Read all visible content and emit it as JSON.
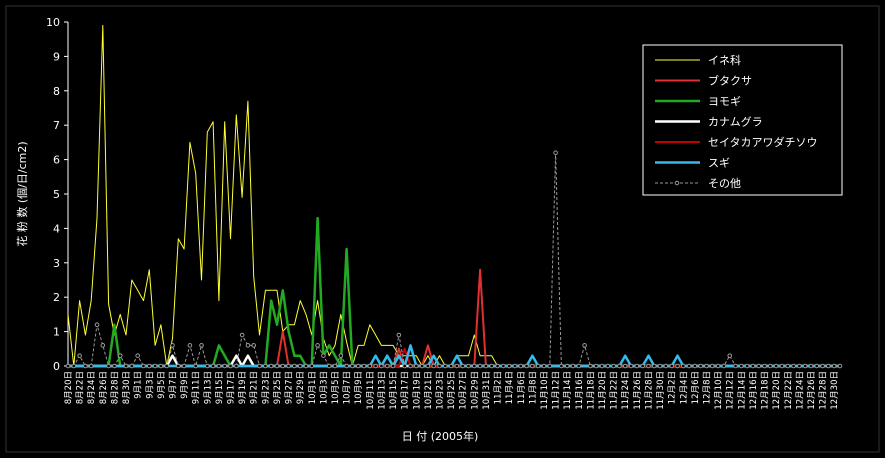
{
  "chart_data": {
    "type": "line",
    "ylabel": "花 粉 数 (個/日/cm2)",
    "xlabel": "日 付 (2005年)",
    "ylim": [
      0,
      10
    ],
    "yticks": [
      0,
      1,
      2,
      3,
      4,
      5,
      6,
      7,
      8,
      9,
      10
    ],
    "legend": "upper right",
    "categories": [
      "8月20日",
      null,
      "8月22日",
      null,
      "8月24日",
      null,
      "8月26日",
      null,
      "8月28日",
      null,
      "8月30日",
      null,
      "9月1日",
      null,
      "9月3日",
      null,
      "9月5日",
      null,
      "9月7日",
      null,
      "9月9日",
      null,
      "9月11日",
      null,
      "9月13日",
      null,
      "9月15日",
      null,
      "9月17日",
      null,
      "9月19日",
      null,
      "9月21日",
      null,
      "9月23日",
      null,
      "9月25日",
      null,
      "9月27日",
      null,
      "9月29日",
      null,
      "10月1日",
      null,
      "10月3日",
      null,
      "10月5日",
      null,
      "10月7日",
      null,
      "10月9日",
      null,
      "10月11日",
      null,
      "10月13日",
      null,
      "10月15日",
      null,
      "10月17日",
      null,
      "10月19日",
      null,
      "10月21日",
      null,
      "10月23日",
      null,
      "10月25日",
      null,
      "10月27日",
      null,
      "10月29日",
      null,
      "10月31日",
      null,
      "11月2日",
      null,
      "11月4日",
      null,
      "11月6日",
      null,
      "11月8日",
      null,
      "11月10日",
      null,
      "11月12日",
      null,
      "11月14日",
      null,
      "11月16日",
      null,
      "11月18日",
      null,
      "11月20日",
      null,
      "11月22日",
      null,
      "11月24日",
      null,
      "11月26日",
      null,
      "11月28日",
      null,
      "11月30日",
      null,
      "12月2日",
      null,
      "12月4日",
      null,
      "12月6日",
      null,
      "12月8日",
      null,
      "12月10日",
      null,
      "12月12日",
      null,
      "12月14日",
      null,
      "12月16日",
      null,
      "12月18日",
      null,
      "12月20日",
      null,
      "12月22日",
      null,
      "12月24日",
      null,
      "12月26日",
      null,
      "12月28日",
      null,
      "12月30日",
      null
    ],
    "series": [
      {
        "name": "イネ科",
        "color": "#ffff33",
        "width": 1,
        "values": [
          1.5,
          0,
          1.9,
          0.9,
          1.9,
          4.3,
          9.9,
          1.8,
          0.9,
          1.5,
          0.9,
          2.5,
          2.2,
          1.9,
          2.8,
          0.6,
          1.2,
          0,
          0.8,
          3.7,
          3.4,
          6.5,
          5.6,
          2.5,
          6.8,
          7.1,
          1.9,
          7.1,
          3.7,
          7.3,
          4.9,
          7.7,
          2.6,
          0.9,
          2.2,
          2.2,
          2.2,
          1.0,
          1.2,
          1.2,
          1.9,
          1.5,
          0.9,
          1.9,
          0.8,
          0.3,
          0.6,
          1.5,
          0.7,
          0,
          0.6,
          0.6,
          1.2,
          0.9,
          0.6,
          0.6,
          0.6,
          0.3,
          0.3,
          0.3,
          0.3,
          0,
          0.3,
          0,
          0.3,
          0,
          0,
          0.3,
          0.3,
          0.3,
          0.9,
          0.3,
          0.3,
          0.3,
          0,
          0,
          0,
          0,
          0,
          0,
          0,
          0,
          0,
          0,
          0,
          0,
          0,
          0,
          0,
          0,
          0,
          0,
          0,
          0,
          0,
          0,
          0,
          0,
          0,
          0,
          0,
          0,
          0,
          0,
          0,
          0,
          0,
          0,
          0,
          0,
          0,
          0,
          0,
          0,
          0,
          0,
          0,
          0,
          0,
          0,
          0,
          0,
          0,
          0,
          0,
          0,
          0,
          0,
          0,
          0,
          0,
          0,
          0,
          0
        ]
      },
      {
        "name": "ブタクサ",
        "color": "#e03030",
        "width": 2,
        "values": [
          0,
          0,
          0,
          0,
          0,
          0,
          0,
          0,
          0,
          0,
          0,
          0,
          0,
          0,
          0,
          0,
          0,
          0,
          0,
          0,
          0,
          0,
          0,
          0,
          0,
          0,
          0,
          0,
          0,
          0,
          0,
          0,
          0,
          0,
          0,
          0,
          0,
          1.0,
          0,
          0,
          0,
          0,
          0,
          0,
          0,
          0,
          0,
          0,
          0,
          0,
          0,
          0,
          0,
          0,
          0,
          0,
          0,
          0.5,
          0,
          0,
          0,
          0,
          0.6,
          0,
          0,
          0,
          0,
          0,
          0,
          0,
          0,
          2.8,
          0,
          0,
          0,
          0,
          0,
          0,
          0,
          0,
          0,
          0,
          0,
          0,
          0,
          0,
          0,
          0,
          0,
          0,
          0,
          0,
          0,
          0,
          0,
          0,
          0,
          0,
          0,
          0,
          0,
          0,
          0,
          0,
          0,
          0,
          0,
          0,
          0,
          0,
          0,
          0,
          0,
          0,
          0,
          0,
          0,
          0,
          0,
          0,
          0,
          0,
          0,
          0,
          0,
          0,
          0,
          0,
          0,
          0,
          0,
          0,
          0,
          0
        ]
      },
      {
        "name": "ヨモギ",
        "color": "#22aa22",
        "width": 2.5,
        "values": [
          0,
          0,
          0,
          0,
          0,
          0,
          0,
          0,
          1.2,
          0,
          0,
          0,
          0,
          0,
          0,
          0,
          0,
          0,
          0,
          0,
          0,
          0,
          0,
          0,
          0,
          0,
          0.6,
          0.3,
          0,
          0,
          0,
          0,
          0,
          0,
          0,
          1.9,
          1.2,
          2.2,
          1.0,
          0.3,
          0.3,
          0,
          0,
          4.3,
          0.3,
          0.6,
          0.3,
          0,
          3.4,
          0,
          0,
          0,
          0,
          0,
          0,
          0.3,
          0,
          0.3,
          0,
          0,
          0,
          0,
          0,
          0,
          0,
          0,
          0,
          0,
          0,
          0,
          0,
          0,
          0,
          0,
          0,
          0,
          0,
          0,
          0,
          0,
          0,
          0,
          0,
          0,
          0,
          0,
          0,
          0,
          0,
          0,
          0,
          0,
          0,
          0,
          0,
          0,
          0,
          0,
          0,
          0,
          0,
          0,
          0,
          0,
          0,
          0,
          0,
          0,
          0,
          0,
          0,
          0,
          0,
          0,
          0,
          0,
          0,
          0,
          0,
          0,
          0,
          0,
          0,
          0,
          0,
          0,
          0,
          0,
          0,
          0,
          0,
          0,
          0,
          0
        ]
      },
      {
        "name": "カナムグラ",
        "color": "#ffffff",
        "width": 2.5,
        "values": [
          0,
          0,
          0,
          0,
          0,
          0,
          0,
          0,
          0,
          0,
          0,
          0,
          0,
          0,
          0,
          0,
          0,
          0,
          0.3,
          0,
          0,
          0,
          0,
          0,
          0,
          0,
          0,
          0,
          0,
          0.3,
          0,
          0.3,
          0,
          0,
          0,
          0,
          0,
          0,
          0,
          0,
          0,
          0,
          0,
          0,
          0,
          0,
          0,
          0,
          0,
          0,
          0,
          0,
          0,
          0,
          0,
          0,
          0,
          0,
          0,
          0,
          0,
          0,
          0,
          0,
          0,
          0,
          0,
          0,
          0,
          0,
          0,
          0,
          0,
          0,
          0,
          0,
          0,
          0,
          0,
          0,
          0,
          0,
          0,
          0,
          0,
          0,
          0,
          0,
          0,
          0,
          0,
          0,
          0,
          0,
          0,
          0,
          0,
          0,
          0,
          0,
          0,
          0,
          0,
          0,
          0,
          0,
          0,
          0,
          0,
          0,
          0,
          0,
          0,
          0,
          0,
          0,
          0,
          0,
          0,
          0,
          0,
          0,
          0,
          0,
          0,
          0,
          0,
          0,
          0,
          0,
          0,
          0,
          0,
          0
        ]
      },
      {
        "name": "セイタカアワダチソウ",
        "color": "#c00000",
        "width": 2,
        "values": [
          0,
          0,
          0,
          0,
          0,
          0,
          0,
          0,
          0,
          0,
          0,
          0,
          0,
          0,
          0,
          0,
          0,
          0,
          0,
          0,
          0,
          0,
          0,
          0,
          0,
          0,
          0,
          0,
          0,
          0,
          0,
          0,
          0,
          0,
          0,
          0,
          0,
          0,
          0,
          0,
          0,
          0,
          0,
          0,
          0,
          0,
          0,
          0,
          0,
          0,
          0,
          0,
          0,
          0,
          0,
          0,
          0,
          0,
          0.5,
          0,
          0,
          0,
          0,
          0,
          0,
          0,
          0,
          0,
          0,
          0,
          0,
          0,
          0,
          0,
          0,
          0,
          0,
          0,
          0,
          0,
          0,
          0,
          0,
          0,
          0,
          0,
          0,
          0,
          0,
          0,
          0,
          0,
          0,
          0,
          0,
          0,
          0,
          0,
          0,
          0,
          0,
          0,
          0,
          0,
          0,
          0,
          0,
          0,
          0,
          0,
          0,
          0,
          0,
          0,
          0,
          0,
          0,
          0,
          0,
          0,
          0,
          0,
          0,
          0,
          0,
          0,
          0,
          0,
          0,
          0,
          0,
          0,
          0,
          0
        ]
      },
      {
        "name": "スギ",
        "color": "#33bbee",
        "width": 2.5,
        "values": [
          0,
          0,
          0,
          0,
          0,
          0,
          0,
          0,
          0,
          0,
          0,
          0,
          0,
          0,
          0,
          0,
          0,
          0,
          0,
          0,
          0,
          0,
          0,
          0,
          0,
          0,
          0,
          0,
          0,
          0,
          0,
          0,
          0,
          0,
          0,
          0,
          0,
          0,
          0,
          0,
          0,
          0,
          0,
          0,
          0,
          0,
          0,
          0,
          0,
          0,
          0,
          0,
          0,
          0.3,
          0,
          0.3,
          0,
          0.3,
          0,
          0.6,
          0,
          0,
          0,
          0.3,
          0,
          0,
          0,
          0.3,
          0,
          0,
          0,
          0,
          0,
          0,
          0,
          0,
          0,
          0,
          0,
          0,
          0.3,
          0,
          0,
          0,
          0,
          0,
          0,
          0,
          0,
          0,
          0,
          0,
          0,
          0,
          0,
          0,
          0.3,
          0,
          0,
          0,
          0.3,
          0,
          0,
          0,
          0,
          0.3,
          0,
          0,
          0,
          0,
          0,
          0,
          0,
          0,
          0,
          0,
          0,
          0,
          0,
          0,
          0,
          0,
          0,
          0,
          0,
          0,
          0,
          0,
          0,
          0,
          0,
          0,
          0,
          0
        ]
      },
      {
        "name": "その他",
        "color": "#999999",
        "width": 1,
        "dashed": true,
        "markers": true,
        "values": [
          0,
          0,
          0.3,
          0,
          0,
          1.2,
          0.6,
          0,
          0,
          0.3,
          0,
          0,
          0.3,
          0,
          0,
          0,
          0,
          0,
          0.6,
          0,
          0,
          0.6,
          0,
          0.6,
          0,
          0,
          0,
          0,
          0,
          0,
          0.9,
          0.6,
          0.6,
          0,
          0,
          0,
          0,
          0,
          0,
          0,
          0,
          0,
          0,
          0.6,
          0.3,
          0,
          0,
          0.3,
          0,
          0,
          0,
          0,
          0,
          0,
          0,
          0,
          0,
          0.9,
          0,
          0,
          0,
          0,
          0,
          0,
          0,
          0,
          0,
          0,
          0,
          0,
          0,
          0,
          0,
          0,
          0,
          0,
          0,
          0,
          0,
          0,
          0,
          0,
          0,
          0,
          6.2,
          0,
          0,
          0,
          0,
          0.6,
          0,
          0,
          0,
          0,
          0,
          0,
          0,
          0,
          0,
          0,
          0,
          0,
          0,
          0,
          0,
          0,
          0,
          0,
          0,
          0,
          0,
          0,
          0,
          0,
          0.3,
          0,
          0,
          0,
          0,
          0,
          0,
          0,
          0,
          0,
          0,
          0,
          0,
          0,
          0,
          0,
          0,
          0,
          0,
          0
        ]
      }
    ]
  }
}
